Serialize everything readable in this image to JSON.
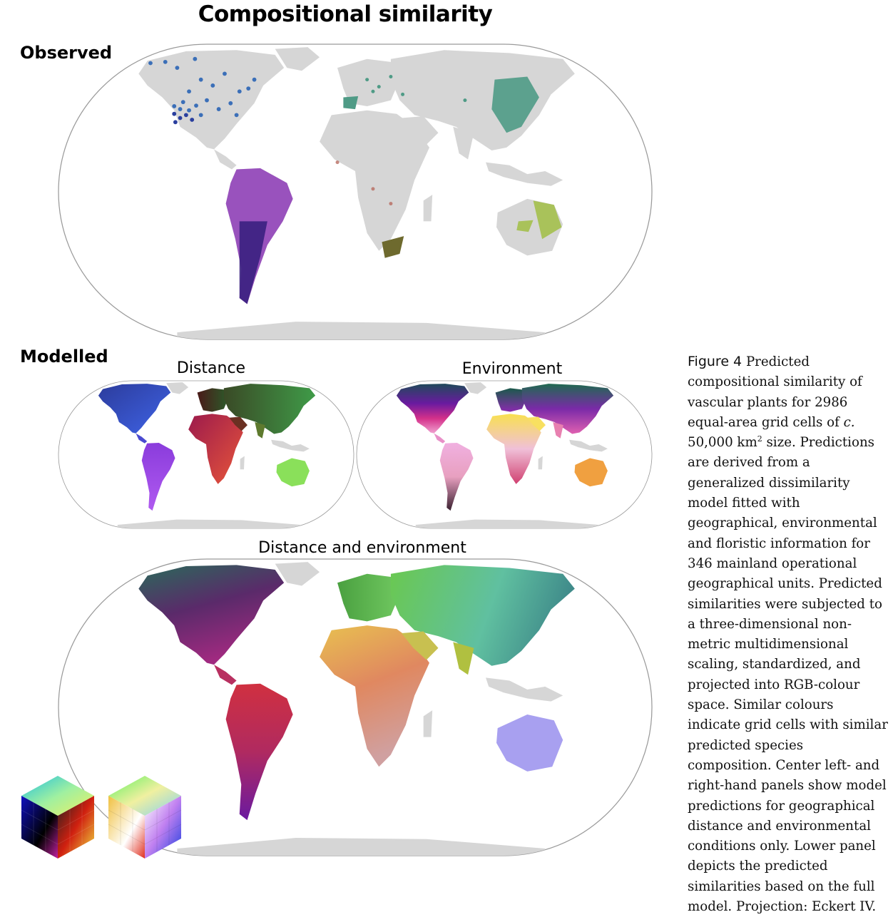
{
  "figure": {
    "title": "Compositional similarity",
    "observed_label": "Observed",
    "modelled_label": "Modelled",
    "panels": {
      "distance": "Distance",
      "environment": "Environment",
      "distance_and_environment": "Distance and environment"
    }
  },
  "caption": {
    "label": "Figure 4",
    "part1": "Predicted compositional similarity of vascular plants for 2986 equal-area grid cells of ",
    "c": "c.",
    "part2": " 50,000 km",
    "sup": "2",
    "part3": " size. Predictions are derived from a generalized dissimilarity model fitted with geographical, environmental and floristic information for 346 mainland operational geographical units. Predicted similarities were subjected to a three-dimensional non-metric multidimensional scaling, standardized, and projected into RGB-colour space. Similar colours indicate grid cells with similar predicted species composition. Center left- and right-hand panels show model predictions for geographical distance and environmental conditions only. Lower panel depicts the predicted similarities based on the full model. Projection: Eckert IV."
  },
  "colors": {
    "land_grey": "#d6d6d6",
    "frame": "#9a9a9a",
    "north_america_obs": "#3b6fb8",
    "south_america_obs": "#7b3aa8",
    "europe_asia_obs": "#4f9b86",
    "africa_obs": "#6e6a2e",
    "australia_obs": "#a9c25a"
  },
  "icons": [
    "rgb-cube-dark",
    "rgb-cube-light"
  ]
}
